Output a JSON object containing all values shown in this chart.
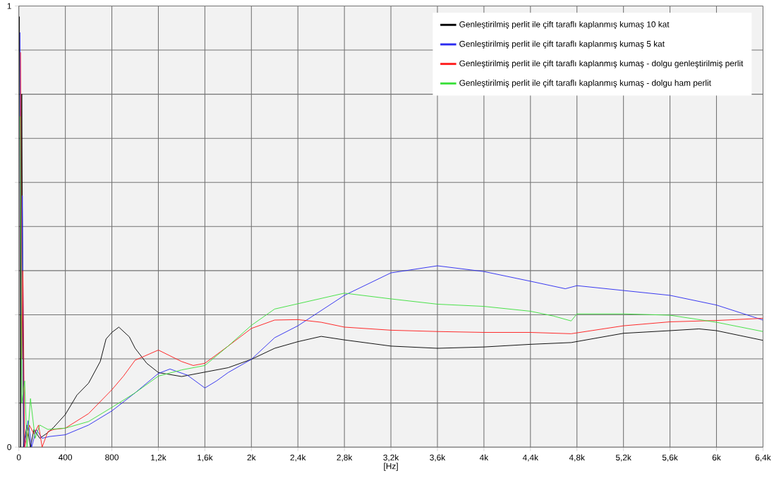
{
  "chart_data": {
    "type": "line",
    "xlabel": "[Hz]",
    "xlim": [
      0,
      6400
    ],
    "ylim": [
      0,
      1
    ],
    "xticks": [
      0,
      400,
      800,
      {
        "value": 1200,
        "label": "1,2k"
      },
      {
        "value": 1600,
        "label": "1,6k"
      },
      {
        "value": 2000,
        "label": "2k"
      },
      {
        "value": 2400,
        "label": "2,4k"
      },
      {
        "value": 2800,
        "label": "2,8k"
      },
      {
        "value": 3200,
        "label": "3,2k"
      },
      {
        "value": 3600,
        "label": "3,6k"
      },
      {
        "value": 4000,
        "label": "4k"
      },
      {
        "value": 4400,
        "label": "4,4k"
      },
      {
        "value": 4800,
        "label": "4,8k"
      },
      {
        "value": 5200,
        "label": "5,2k"
      },
      {
        "value": 5600,
        "label": "5,6k"
      },
      {
        "value": 6000,
        "label": "6k"
      },
      {
        "value": 6400,
        "label": "6,4k"
      }
    ],
    "yticks": [
      0,
      {
        "value": 0.1,
        "label": null
      },
      {
        "value": 0.2,
        "label": null
      },
      {
        "value": 0.3,
        "label": null
      },
      {
        "value": 0.4,
        "label": null
      },
      {
        "value": 0.5,
        "label": null
      },
      {
        "value": 0.6,
        "label": null
      },
      {
        "value": 0.7,
        "label": null
      },
      {
        "value": 0.8,
        "label": null
      },
      {
        "value": 0.9,
        "label": null
      },
      1
    ],
    "grid": true,
    "legend": "top right",
    "marker": "none",
    "line_style": "solid",
    "series": [
      {
        "name": "Genleştirilmiş perlit ile çift taraflı kaplanmış kumaş 10 kat",
        "color": "#000000",
        "x": [
          5,
          15,
          25,
          40,
          70,
          100,
          130,
          180,
          245,
          300,
          400,
          500,
          600,
          700,
          750,
          800,
          860,
          950,
          1000,
          1100,
          1200,
          1400,
          1600,
          1800,
          2000,
          2200,
          2400,
          2600,
          2800,
          3200,
          3600,
          4000,
          4400,
          4750,
          5200,
          5600,
          5850,
          6000,
          6400
        ],
        "values": [
          0.976,
          0.0,
          0.8,
          0.0,
          0.05,
          0.0,
          0.04,
          0.02,
          0.032,
          0.045,
          0.074,
          0.118,
          0.145,
          0.194,
          0.245,
          0.26,
          0.272,
          0.25,
          0.224,
          0.19,
          0.169,
          0.16,
          0.17,
          0.18,
          0.199,
          0.224,
          0.239,
          0.251,
          0.243,
          0.229,
          0.224,
          0.227,
          0.233,
          0.237,
          0.258,
          0.264,
          0.268,
          0.264,
          0.242
        ]
      },
      {
        "name": "Genleştirilmiş perlit ile çift taraflı kaplanmış kumaş 5 kat",
        "color": "#2a2af0",
        "x": [
          10,
          20,
          30,
          45,
          80,
          110,
          150,
          200,
          263,
          400,
          600,
          800,
          1000,
          1200,
          1300,
          1450,
          1600,
          1700,
          1800,
          2000,
          2200,
          2400,
          2800,
          3200,
          3600,
          4000,
          4400,
          4700,
          4800,
          5200,
          5600,
          6000,
          6400
        ],
        "values": [
          0.94,
          0.3,
          0.57,
          0.0,
          0.06,
          0.0,
          0.04,
          0.02,
          0.024,
          0.028,
          0.05,
          0.082,
          0.123,
          0.167,
          0.177,
          0.163,
          0.134,
          0.15,
          0.169,
          0.199,
          0.248,
          0.275,
          0.344,
          0.395,
          0.411,
          0.398,
          0.376,
          0.359,
          0.366,
          0.355,
          0.344,
          0.322,
          0.288
        ]
      },
      {
        "name": "Genleştirilmiş perlit ile çift taraflı kaplanmış kumaş - dolgu genleştirilmiş perlit",
        "color": "#ff1a1a",
        "x": [
          15,
          25,
          35,
          50,
          90,
          130,
          170,
          200,
          250,
          300,
          400,
          600,
          800,
          900,
          1000,
          1200,
          1400,
          1500,
          1600,
          1800,
          2000,
          2200,
          2400,
          2600,
          2800,
          3200,
          3600,
          4000,
          4400,
          4750,
          5200,
          5600,
          6000,
          6400
        ],
        "values": [
          0.895,
          0.2,
          0.4,
          0.0,
          0.05,
          0.03,
          0.05,
          0.0,
          0.035,
          0.04,
          0.043,
          0.076,
          0.13,
          0.161,
          0.197,
          0.22,
          0.194,
          0.185,
          0.19,
          0.229,
          0.269,
          0.288,
          0.289,
          0.283,
          0.272,
          0.265,
          0.262,
          0.26,
          0.26,
          0.257,
          0.275,
          0.284,
          0.287,
          0.292
        ]
      },
      {
        "name": "Genleştirilmiş perlit ile çift taraflı kaplanmış kumaş - dolgu ham perlit",
        "color": "#3ce03c",
        "x": [
          12,
          25,
          50,
          70,
          100,
          140,
          180,
          250,
          400,
          600,
          800,
          1000,
          1200,
          1400,
          1600,
          1800,
          2000,
          2200,
          2400,
          2800,
          3200,
          3600,
          4000,
          4400,
          4600,
          4750,
          4800,
          5200,
          5600,
          6000,
          6400
        ],
        "values": [
          0.75,
          0.1,
          0.15,
          0.0,
          0.11,
          0.02,
          0.05,
          0.04,
          0.043,
          0.058,
          0.09,
          0.123,
          0.161,
          0.175,
          0.185,
          0.229,
          0.276,
          0.313,
          0.325,
          0.349,
          0.336,
          0.324,
          0.319,
          0.308,
          0.297,
          0.286,
          0.302,
          0.302,
          0.299,
          0.283,
          0.262
        ]
      }
    ]
  }
}
